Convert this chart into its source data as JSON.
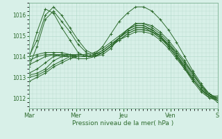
{
  "background_color": "#d8f0e8",
  "grid_color": "#b0d8c8",
  "line_color": "#2d6b2d",
  "xlabel": "Pression niveau de la mer( hPa )",
  "ylim": [
    1011.5,
    1016.6
  ],
  "yticks": [
    1012,
    1013,
    1014,
    1015,
    1016
  ],
  "xlim": [
    0,
    96
  ],
  "xtick_positions": [
    0,
    24,
    48,
    72,
    96
  ],
  "xtick_labels": [
    "Mar",
    "Mer",
    "Jeu",
    "Ven",
    "S"
  ],
  "series": [
    [
      1013.9,
      1015.2,
      1016.3,
      1016.1,
      1015.4,
      1014.8,
      1014.2,
      1014.0,
      1014.1,
      1014.5,
      1015.1,
      1015.7,
      1016.1,
      1016.4,
      1016.4,
      1016.2,
      1015.8,
      1015.3,
      1014.7,
      1014.0,
      1013.3,
      1012.7,
      1012.2,
      1011.9
    ],
    [
      1014.0,
      1014.8,
      1016.0,
      1016.4,
      1016.0,
      1015.4,
      1014.8,
      1014.3,
      1014.1,
      1014.2,
      1014.5,
      1014.9,
      1015.3,
      1015.5,
      1015.5,
      1015.3,
      1015.0,
      1014.6,
      1014.2,
      1013.7,
      1013.2,
      1012.6,
      1012.1,
      1011.8
    ],
    [
      1013.5,
      1014.5,
      1015.8,
      1016.2,
      1015.7,
      1015.2,
      1014.6,
      1014.2,
      1014.0,
      1014.1,
      1014.4,
      1014.9,
      1015.3,
      1015.6,
      1015.6,
      1015.4,
      1015.1,
      1014.7,
      1014.2,
      1013.7,
      1013.1,
      1012.6,
      1012.2,
      1012.0
    ],
    [
      1013.1,
      1013.2,
      1013.4,
      1013.8,
      1014.0,
      1014.1,
      1014.1,
      1014.0,
      1014.0,
      1014.2,
      1014.5,
      1014.9,
      1015.3,
      1015.6,
      1015.6,
      1015.5,
      1015.2,
      1014.8,
      1014.3,
      1013.8,
      1013.2,
      1012.6,
      1012.2,
      1012.0
    ],
    [
      1012.8,
      1013.0,
      1013.2,
      1013.5,
      1013.7,
      1013.9,
      1014.0,
      1014.0,
      1014.1,
      1014.3,
      1014.6,
      1014.9,
      1015.2,
      1015.4,
      1015.4,
      1015.3,
      1015.0,
      1014.6,
      1014.1,
      1013.6,
      1013.0,
      1012.5,
      1012.1,
      1011.9
    ],
    [
      1013.0,
      1013.1,
      1013.3,
      1013.6,
      1013.8,
      1014.0,
      1014.1,
      1014.1,
      1014.2,
      1014.4,
      1014.7,
      1015.0,
      1015.3,
      1015.5,
      1015.5,
      1015.3,
      1015.0,
      1014.5,
      1014.0,
      1013.4,
      1012.9,
      1012.4,
      1012.0,
      1011.9
    ],
    [
      1014.0,
      1014.1,
      1014.2,
      1014.2,
      1014.2,
      1014.1,
      1014.0,
      1014.0,
      1014.0,
      1014.2,
      1014.5,
      1014.8,
      1015.1,
      1015.3,
      1015.3,
      1015.2,
      1014.9,
      1014.6,
      1014.1,
      1013.5,
      1012.9,
      1012.4,
      1012.1,
      1012.1
    ],
    [
      1013.8,
      1014.0,
      1014.1,
      1014.1,
      1014.0,
      1014.0,
      1013.9,
      1013.9,
      1014.0,
      1014.2,
      1014.5,
      1014.8,
      1015.0,
      1015.2,
      1015.2,
      1015.1,
      1014.8,
      1014.4,
      1013.9,
      1013.4,
      1012.8,
      1012.3,
      1012.0,
      1012.0
    ],
    [
      1013.2,
      1013.4,
      1013.7,
      1014.0,
      1014.1,
      1014.1,
      1014.0,
      1014.0,
      1014.0,
      1014.2,
      1014.5,
      1014.8,
      1015.1,
      1015.3,
      1015.3,
      1015.2,
      1014.9,
      1014.5,
      1014.0,
      1013.5,
      1012.9,
      1012.4,
      1012.1,
      1012.0
    ],
    [
      1013.6,
      1013.8,
      1014.0,
      1014.1,
      1014.1,
      1014.0,
      1014.0,
      1014.0,
      1014.1,
      1014.3,
      1014.6,
      1014.9,
      1015.2,
      1015.4,
      1015.4,
      1015.2,
      1015.0,
      1014.5,
      1014.0,
      1013.5,
      1012.9,
      1012.4,
      1012.1,
      1011.9
    ]
  ]
}
